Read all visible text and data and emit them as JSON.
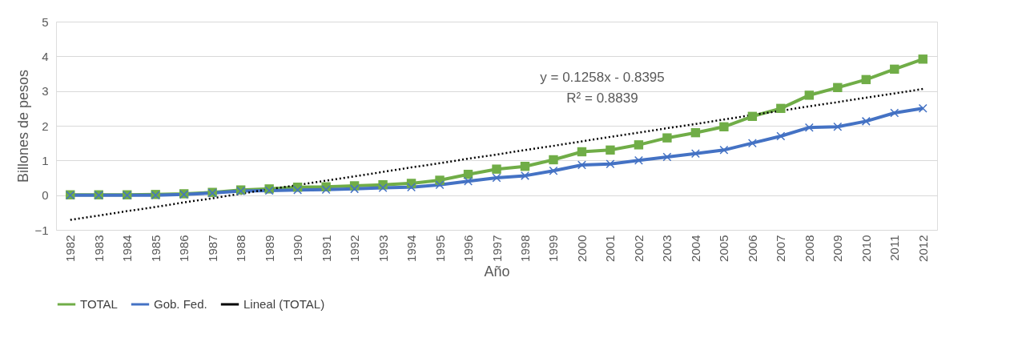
{
  "chart_data": {
    "type": "line",
    "xlabel": "Año",
    "ylabel": "Billones de pesos",
    "categories": [
      "1982",
      "1983",
      "1984",
      "1985",
      "1986",
      "1987",
      "1988",
      "1989",
      "1990",
      "1991",
      "1992",
      "1993",
      "1994",
      "1995",
      "1996",
      "1997",
      "1998",
      "1999",
      "2000",
      "2001",
      "2002",
      "2003",
      "2004",
      "2005",
      "2006",
      "2007",
      "2008",
      "2009",
      "2010",
      "2011",
      "2012"
    ],
    "series": [
      {
        "name": "TOTAL",
        "color": "#70ad47",
        "marker": "square",
        "line_style": "solid",
        "values": [
          0.01,
          0.01,
          0.01,
          0.02,
          0.04,
          0.08,
          0.15,
          0.18,
          0.23,
          0.24,
          0.27,
          0.3,
          0.34,
          0.43,
          0.6,
          0.75,
          0.83,
          1.02,
          1.25,
          1.3,
          1.45,
          1.65,
          1.8,
          1.97,
          2.27,
          2.5,
          2.88,
          3.1,
          3.33,
          3.63,
          3.92
        ]
      },
      {
        "name": "Gob. Fed.",
        "color": "#4472c4",
        "marker": "cross",
        "line_style": "solid",
        "values": [
          0.0,
          0.0,
          0.0,
          0.0,
          0.02,
          0.06,
          0.12,
          0.13,
          0.15,
          0.16,
          0.18,
          0.21,
          0.23,
          0.3,
          0.4,
          0.5,
          0.56,
          0.7,
          0.87,
          0.9,
          1.0,
          1.1,
          1.2,
          1.3,
          1.5,
          1.7,
          1.95,
          1.97,
          2.13,
          2.37,
          2.5
        ]
      },
      {
        "name": "Lineal (TOTAL)",
        "color": "#000000",
        "marker": "none",
        "line_style": "dotted",
        "values": [
          -0.71,
          -0.59,
          -0.46,
          -0.34,
          -0.21,
          -0.09,
          0.04,
          0.17,
          0.29,
          0.42,
          0.54,
          0.67,
          0.8,
          0.92,
          1.05,
          1.17,
          1.3,
          1.42,
          1.55,
          1.68,
          1.8,
          1.93,
          2.05,
          2.18,
          2.31,
          2.43,
          2.56,
          2.68,
          2.81,
          2.93,
          3.06
        ]
      }
    ],
    "ylim": [
      -1,
      5
    ],
    "yticks": [
      -1,
      0,
      1,
      2,
      3,
      4,
      5
    ],
    "grid": "y",
    "legend": "bottom",
    "annotations": [
      "y = 0.1258x - 0.8395",
      "R² = 0.8839"
    ]
  }
}
